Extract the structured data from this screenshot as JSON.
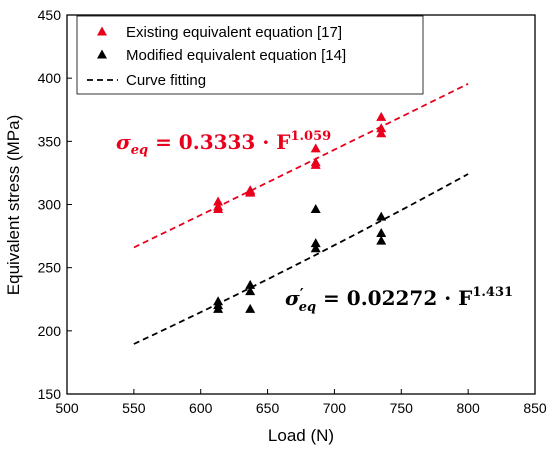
{
  "chart_data": {
    "type": "scatter",
    "xlabel": "Load (N)",
    "ylabel": "Equivalent stress (MPa)",
    "xlim": [
      500,
      850
    ],
    "ylim": [
      150,
      450
    ],
    "xticks": [
      500,
      550,
      600,
      650,
      700,
      750,
      800,
      850
    ],
    "yticks": [
      150,
      200,
      250,
      300,
      350,
      400,
      450
    ],
    "grid": false,
    "legend_position": "top-left",
    "series": [
      {
        "name": "Existing equivalent equation [17]",
        "marker": "triangle",
        "color": "#e8001c",
        "points": [
          {
            "x": 613,
            "y": 302
          },
          {
            "x": 613,
            "y": 298
          },
          {
            "x": 613,
            "y": 296
          },
          {
            "x": 637,
            "y": 311
          },
          {
            "x": 637,
            "y": 309
          },
          {
            "x": 637,
            "y": 310
          },
          {
            "x": 686,
            "y": 344
          },
          {
            "x": 686,
            "y": 333
          },
          {
            "x": 686,
            "y": 331
          },
          {
            "x": 735,
            "y": 369
          },
          {
            "x": 735,
            "y": 360
          },
          {
            "x": 735,
            "y": 356
          }
        ]
      },
      {
        "name": "Modified equivalent equation [14]",
        "marker": "triangle",
        "color": "#000000",
        "points": [
          {
            "x": 613,
            "y": 223
          },
          {
            "x": 613,
            "y": 220
          },
          {
            "x": 613,
            "y": 217
          },
          {
            "x": 637,
            "y": 236
          },
          {
            "x": 637,
            "y": 231
          },
          {
            "x": 637,
            "y": 217
          },
          {
            "x": 686,
            "y": 296
          },
          {
            "x": 686,
            "y": 269
          },
          {
            "x": 686,
            "y": 265
          },
          {
            "x": 735,
            "y": 290
          },
          {
            "x": 735,
            "y": 277
          },
          {
            "x": 735,
            "y": 271
          }
        ]
      }
    ],
    "fits": [
      {
        "color": "#e8001c",
        "coef": 0.3333,
        "exp": 1.059,
        "x_range": [
          550,
          800
        ]
      },
      {
        "color": "#000000",
        "coef": 0.02272,
        "exp": 1.431,
        "x_range": [
          550,
          800
        ]
      }
    ],
    "fit_legend_label": "Curve fitting",
    "annotations": {
      "red_symbol": "σ",
      "red_subscript": "eq",
      "red_body": " = 0.3333 · F",
      "red_superscript": "1.059",
      "black_symbol": "σ",
      "black_prime": "′",
      "black_subscript": "eq",
      "black_body": " = 0.02272 · F",
      "black_superscript": "1.431"
    }
  }
}
